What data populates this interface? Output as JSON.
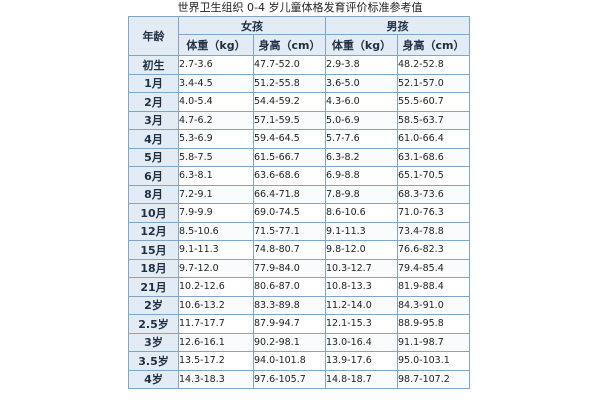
{
  "title": "世界卫生组织 0-4 岁儿童体格发育评价标准参考值",
  "headers": {
    "age": "年龄",
    "girls": "女孩",
    "boys": "男孩",
    "weight": "体重（kg）",
    "height": "身高（cm）"
  },
  "rows": [
    {
      "age": "初生",
      "girl_weight": "2.7-3.6",
      "girl_height": "47.7-52.0",
      "boy_weight": "2.9-3.8",
      "boy_height": "48.2-52.8"
    },
    {
      "age": "1月",
      "girl_weight": "3.4-4.5",
      "girl_height": "51.2-55.8",
      "boy_weight": "3.6-5.0",
      "boy_height": "52.1-57.0"
    },
    {
      "age": "2月",
      "girl_weight": "4.0-5.4",
      "girl_height": "54.4-59.2",
      "boy_weight": "4.3-6.0",
      "boy_height": "55.5-60.7"
    },
    {
      "age": "3月",
      "girl_weight": "4.7-6.2",
      "girl_height": "57.1-59.5",
      "boy_weight": "5.0-6.9",
      "boy_height": "58.5-63.7"
    },
    {
      "age": "4月",
      "girl_weight": "5.3-6.9",
      "girl_height": "59.4-64.5",
      "boy_weight": "5.7-7.6",
      "boy_height": "61.0-66.4"
    },
    {
      "age": "5月",
      "girl_weight": "5.8-7.5",
      "girl_height": "61.5-66.7",
      "boy_weight": "6.3-8.2",
      "boy_height": "63.1-68.6"
    },
    {
      "age": "6月",
      "girl_weight": "6.3-8.1",
      "girl_height": "63.6-68.6",
      "boy_weight": "6.9-8.8",
      "boy_height": "65.1-70.5"
    },
    {
      "age": "8月",
      "girl_weight": "7.2-9.1",
      "girl_height": "66.4-71.8",
      "boy_weight": "7.8-9.8",
      "boy_height": "68.3-73.6"
    },
    {
      "age": "10月",
      "girl_weight": "7.9-9.9",
      "girl_height": "69.0-74.5",
      "boy_weight": "8.6-10.6",
      "boy_height": "71.0-76.3"
    },
    {
      "age": "12月",
      "girl_weight": "8.5-10.6",
      "girl_height": "71.5-77.1",
      "boy_weight": "9.1-11.3",
      "boy_height": "73.4-78.8"
    },
    {
      "age": "15月",
      "girl_weight": "9.1-11.3",
      "girl_height": "74.8-80.7",
      "boy_weight": "9.8-12.0",
      "boy_height": "76.6-82.3"
    },
    {
      "age": "18月",
      "girl_weight": "9.7-12.0",
      "girl_height": "77.9-84.0",
      "boy_weight": "10.3-12.7",
      "boy_height": "79.4-85.4"
    },
    {
      "age": "21月",
      "girl_weight": "10.2-12.6",
      "girl_height": "80.6-87.0",
      "boy_weight": "10.8-13.3",
      "boy_height": "81.9-88.4"
    },
    {
      "age": "2岁",
      "girl_weight": "10.6-13.2",
      "girl_height": "83.3-89.8",
      "boy_weight": "11.2-14.0",
      "boy_height": "84.3-91.0"
    },
    {
      "age": "2.5岁",
      "girl_weight": "11.7-17.7",
      "girl_height": "87.9-94.7",
      "boy_weight": "12.1-15.3",
      "boy_height": "88.9-95.8"
    },
    {
      "age": "3岁",
      "girl_weight": "12.6-16.1",
      "girl_height": "90.2-98.1",
      "boy_weight": "13.0-16.4",
      "boy_height": "91.1-98.7"
    },
    {
      "age": "3.5岁",
      "girl_weight": "13.5-17.2",
      "girl_height": "94.0-101.8",
      "boy_weight": "13.9-17.6",
      "boy_height": "95.0-103.1"
    },
    {
      "age": "4岁",
      "girl_weight": "14.3-18.3",
      "girl_height": "97.6-105.7",
      "boy_weight": "14.8-18.7",
      "boy_height": "98.7-107.2"
    }
  ]
}
